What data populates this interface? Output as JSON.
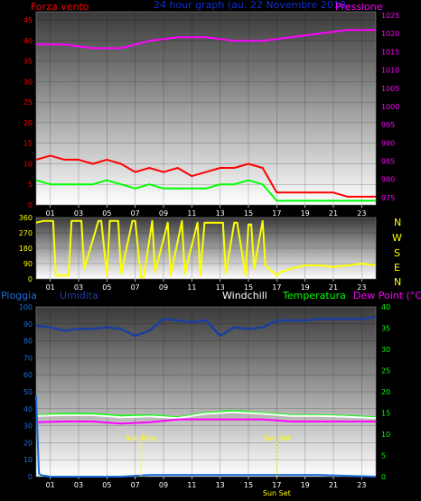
{
  "top_panel": {
    "left_label": "Forza vento",
    "center_label": "24 hour graph (au. 22 Novembre 2018",
    "right_label": "Pressione",
    "left_color": "#ff0000",
    "center_color": "#1030d0",
    "right_color": "#ff00ff"
  },
  "direction_panel": {
    "compass": [
      "N",
      "W",
      "S",
      "E",
      "N"
    ],
    "compass_color": "#ffff00"
  },
  "bottom_panel": {
    "labels": {
      "pioggia": "Pioggia",
      "umidita": "Umidita",
      "windchill": "Windchill",
      "temperatura": "Temperatura",
      "dewpoint": "Dew Point (°C)"
    },
    "colors": {
      "pioggia": "#1f6fd8",
      "umidita": "#1a3fa0",
      "windchill": "#ffffff",
      "temperatura": "#00ff00",
      "dewpoint": "#ff00ff"
    },
    "annotations": {
      "sunrise": "Sun Rise",
      "sunset": "Sun Set",
      "sunset_axis": "Sun Set"
    },
    "annotation_color": "#ffff00"
  },
  "chart_data": [
    {
      "type": "line",
      "title": "24 hour graph (au. 22 Novembre 2018",
      "x_ticks": [
        "01",
        "03",
        "05",
        "07",
        "09",
        "11",
        "13",
        "15",
        "17",
        "19",
        "21",
        "23"
      ],
      "xlim": [
        0,
        24
      ],
      "y_left": {
        "label": "Forza vento",
        "ticks": [
          0,
          5,
          10,
          15,
          20,
          25,
          30,
          35,
          40,
          45
        ],
        "lim": [
          0,
          47
        ]
      },
      "y_right": {
        "label": "Pressione",
        "ticks": [
          975,
          980,
          985,
          990,
          995,
          1000,
          1005,
          1010,
          1015,
          1020,
          1025
        ],
        "lim": [
          973,
          1026
        ]
      },
      "series": [
        {
          "name": "Forza vento",
          "axis": "left",
          "color": "#ff0000",
          "x": [
            0,
            1,
            2,
            3,
            4,
            5,
            6,
            7,
            8,
            9,
            10,
            11,
            12,
            13,
            14,
            15,
            16,
            17,
            18,
            19,
            20,
            21,
            22,
            23,
            24
          ],
          "y": [
            11,
            12,
            11,
            11,
            10,
            11,
            10,
            8,
            9,
            8,
            9,
            7,
            8,
            9,
            9,
            10,
            9,
            3,
            3,
            3,
            3,
            3,
            2,
            2,
            2
          ]
        },
        {
          "name": "Pressione",
          "axis": "right",
          "color": "#ff00ff",
          "x": [
            0,
            2,
            4,
            6,
            8,
            10,
            12,
            14,
            16,
            18,
            20,
            22,
            24
          ],
          "y": [
            1017,
            1017,
            1016,
            1016,
            1018,
            1019,
            1019,
            1018,
            1018,
            1019,
            1020,
            1021,
            1021
          ]
        },
        {
          "color": "#00ff00",
          "axis": "left",
          "x": [
            0,
            1,
            2,
            3,
            4,
            5,
            6,
            7,
            8,
            9,
            10,
            11,
            12,
            13,
            14,
            15,
            16,
            17,
            18,
            19,
            20,
            21,
            22,
            23,
            24
          ],
          "y": [
            6,
            5,
            5,
            5,
            5,
            6,
            5,
            4,
            5,
            4,
            4,
            4,
            4,
            5,
            5,
            6,
            5,
            1,
            1,
            1,
            1,
            1,
            1,
            1,
            1
          ]
        }
      ]
    },
    {
      "type": "line",
      "x_ticks": [
        "01",
        "03",
        "05",
        "07",
        "09",
        "11",
        "13",
        "15",
        "17",
        "19",
        "21",
        "23"
      ],
      "xlim": [
        0,
        24
      ],
      "y": {
        "ticks": [
          0,
          90,
          180,
          270,
          360
        ],
        "lim": [
          0,
          360
        ]
      },
      "series": [
        {
          "color": "#ffff00",
          "x": [
            0,
            0.5,
            1.2,
            1.4,
            2.3,
            2.5,
            3.2,
            3.4,
            4.4,
            4.6,
            5.0,
            5.2,
            5.8,
            6.0,
            6.8,
            7.0,
            7.4,
            7.6,
            8.2,
            8.4,
            9.3,
            9.5,
            10.3,
            10.5,
            11.4,
            11.6,
            11.9,
            12.1,
            13.2,
            13.4,
            14.0,
            14.2,
            14.8,
            15.0,
            15.2,
            15.4,
            16.0,
            16.2,
            17.0,
            17.3,
            18.0,
            18.5,
            19.0,
            20.0,
            21.0,
            22.0,
            23.0,
            24.0
          ],
          "y": [
            330,
            340,
            340,
            20,
            20,
            340,
            340,
            60,
            340,
            340,
            20,
            340,
            340,
            30,
            340,
            340,
            10,
            10,
            340,
            40,
            330,
            20,
            340,
            30,
            330,
            20,
            330,
            330,
            330,
            30,
            330,
            330,
            20,
            320,
            320,
            60,
            340,
            80,
            20,
            40,
            60,
            70,
            80,
            80,
            70,
            80,
            90,
            80
          ]
        }
      ]
    },
    {
      "type": "line",
      "x_ticks": [
        "01",
        "03",
        "05",
        "07",
        "09",
        "11",
        "13",
        "15",
        "17",
        "19",
        "21",
        "23"
      ],
      "xlim": [
        0,
        24
      ],
      "y_left": {
        "label": "Pioggia",
        "ticks": [
          0,
          10,
          20,
          30,
          40,
          50,
          60,
          70,
          80,
          90,
          100
        ],
        "lim": [
          0,
          100
        ]
      },
      "y_right": {
        "label": "Dew Point (°C)",
        "ticks": [
          0,
          5,
          10,
          15,
          20,
          25,
          30,
          35,
          40
        ],
        "lim": [
          0,
          40
        ]
      },
      "series": [
        {
          "name": "Umidita",
          "axis": "left",
          "color": "#1a3fa0",
          "x": [
            0,
            1,
            2,
            3,
            4,
            5,
            6,
            7,
            8,
            9,
            10,
            11,
            12,
            13,
            14,
            15,
            16,
            17,
            18,
            19,
            20,
            21,
            22,
            23,
            24
          ],
          "y": [
            89,
            88,
            86,
            87,
            87,
            88,
            87,
            83,
            86,
            93,
            92,
            91,
            92,
            83,
            88,
            87,
            88,
            92,
            92,
            92,
            93,
            93,
            93,
            93,
            94
          ]
        },
        {
          "name": "Temperatura",
          "axis": "right",
          "color": "#00ff00",
          "x": [
            0,
            2,
            4,
            6,
            8,
            10,
            12,
            14,
            16,
            18,
            20,
            22,
            24
          ],
          "y": [
            14.5,
            14.8,
            14.8,
            14.3,
            14.5,
            14.0,
            15.0,
            15.5,
            15.0,
            14.5,
            14.5,
            14.3,
            14.0
          ]
        },
        {
          "name": "Windchill",
          "axis": "right",
          "color": "#ffffff",
          "x": [
            0,
            2,
            4,
            6,
            8,
            10,
            12,
            14,
            16,
            18,
            20,
            22,
            24
          ],
          "y": [
            14.3,
            14.5,
            14.5,
            14.0,
            14.2,
            13.8,
            14.8,
            15.2,
            14.8,
            14.3,
            14.3,
            14.1,
            13.8
          ]
        },
        {
          "name": "Dew Point (°C)",
          "axis": "right",
          "color": "#ff00ff",
          "x": [
            0,
            2,
            4,
            6,
            8,
            10,
            12,
            14,
            16,
            18,
            20,
            22,
            24
          ],
          "y": [
            12.8,
            13.0,
            13.0,
            12.5,
            12.8,
            13.5,
            13.5,
            13.5,
            13.5,
            13.0,
            13.0,
            13.0,
            13.0
          ]
        },
        {
          "name": "Pioggia",
          "axis": "left",
          "color": "#1f6fd8",
          "x": [
            0,
            0.2,
            0.3,
            1,
            6,
            8,
            12,
            16,
            20,
            24
          ],
          "y": [
            48,
            2,
            1,
            0,
            0,
            1,
            1,
            1,
            1,
            0
          ]
        }
      ],
      "annotations": [
        {
          "text": "Sun Rise",
          "x": 7.4
        },
        {
          "text": "Sun Set",
          "x": 17.0
        }
      ]
    }
  ]
}
